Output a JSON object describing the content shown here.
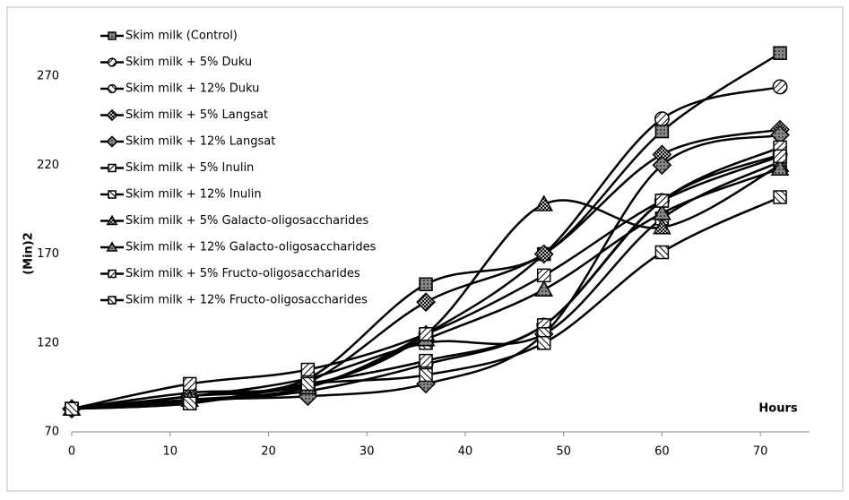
{
  "chart_data": {
    "type": "line",
    "x_label": "Hours",
    "y_label": "(Min)2",
    "x": [
      0,
      12,
      24,
      36,
      48,
      60,
      72
    ],
    "xlim": [
      0,
      75
    ],
    "xticks": [
      0,
      10,
      20,
      30,
      40,
      50,
      60,
      70
    ],
    "ylim": [
      70,
      300
    ],
    "yticks": [
      70,
      120,
      170,
      220,
      270
    ],
    "grid": false,
    "legend": "upper left",
    "smooth": true,
    "series": [
      {
        "name": "Skim milk (Control)",
        "color": "#000000",
        "marker": "square",
        "values": [
          83,
          90,
          100,
          153,
          170,
          239,
          283
        ]
      },
      {
        "name": "Skim milk + 5% Duku",
        "color": "#000000",
        "marker": "circle",
        "values": [
          83,
          88,
          95,
          125,
          170,
          246,
          264
        ]
      },
      {
        "name": "Skim milk + 12% Duku",
        "color": "#000000",
        "marker": "circle",
        "values": [
          83,
          87,
          93,
          108,
          130,
          200,
          226
        ]
      },
      {
        "name": "Skim milk + 5% Langsat",
        "color": "#000000",
        "marker": "diamond",
        "values": [
          83,
          90,
          98,
          143,
          170,
          226,
          240
        ]
      },
      {
        "name": "Skim milk + 12% Langsat",
        "color": "#000000",
        "marker": "diamond",
        "values": [
          83,
          88,
          90,
          97,
          125,
          220,
          237
        ]
      },
      {
        "name": "Skim milk + 5% Inulin",
        "color": "#000000",
        "marker": "square",
        "values": [
          83,
          86,
          97,
          110,
          130,
          200,
          230
        ]
      },
      {
        "name": "Skim milk + 12% Inulin",
        "color": "#000000",
        "marker": "square",
        "values": [
          83,
          90,
          100,
          120,
          125,
          190,
          222
        ]
      },
      {
        "name": "Skim milk + 5% Galacto-oligosaccharides",
        "color": "#000000",
        "marker": "triangle",
        "values": [
          83,
          92,
          96,
          125,
          198,
          185,
          220
        ]
      },
      {
        "name": "Skim milk + 12% Galacto-oligosaccharides",
        "color": "#000000",
        "marker": "triangle",
        "values": [
          83,
          88,
          95,
          122,
          150,
          193,
          218
        ]
      },
      {
        "name": "Skim milk + 5% Fructo-oligosaccharides",
        "color": "#000000",
        "marker": "square",
        "values": [
          83,
          97,
          105,
          125,
          158,
          200,
          225
        ]
      },
      {
        "name": "Skim milk + 12% Fructo-oligosaccharides",
        "color": "#000000",
        "marker": "square",
        "values": [
          83,
          86,
          97,
          102,
          120,
          171,
          202
        ]
      }
    ]
  }
}
